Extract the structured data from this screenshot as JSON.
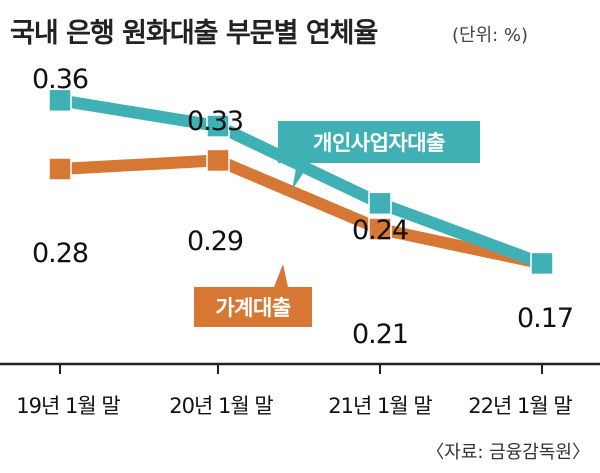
{
  "colors": {
    "personal": "#3fb1b4",
    "household": "#d77734",
    "text": "#111111",
    "tick": "#222222"
  },
  "chart_data": {
    "type": "line",
    "title": "국내 은행 원화대출 부문별 연체율",
    "unit": "(단위: %)",
    "source": "〈자료: 금융감독원〉",
    "categories": [
      "19년 1월 말",
      "20년 1월 말",
      "21년 1월 말",
      "22년 1월 말"
    ],
    "ylim": [
      0.15,
      0.38
    ],
    "grid": false,
    "series": [
      {
        "name": "개인사업자대출",
        "values": [
          0.36,
          0.33,
          0.24,
          0.17
        ],
        "value_labels": [
          "0.36",
          "0.33",
          "0.24",
          "0.17"
        ]
      },
      {
        "name": "가계대출",
        "values": [
          0.28,
          0.29,
          0.21,
          0.17
        ],
        "value_labels": [
          "0.28",
          "0.29",
          "0.21",
          ""
        ]
      }
    ]
  }
}
